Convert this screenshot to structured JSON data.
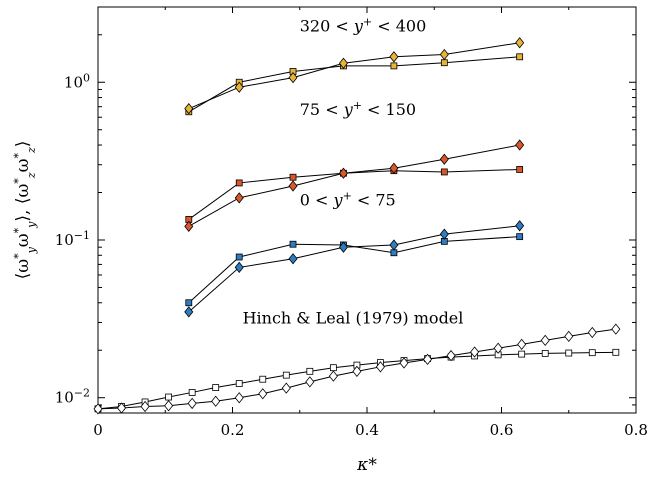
{
  "chart_data": {
    "type": "line",
    "xlabel": "κ*",
    "ylabel": "⟨ω*yω*y⟩, ⟨ω*zω*z⟩",
    "ylabel_parts": {
      "open1": "⟨ω",
      "sup1": "*",
      "sub1": "y",
      "mid1": "ω",
      "sup2": "*",
      "sub2": "y",
      "close1": "⟩, ⟨ω",
      "sup3": "*",
      "sub3": "z",
      "mid2": "ω",
      "sup4": "*",
      "sub4": "z",
      "close2": "⟩"
    },
    "xlim": [
      0,
      0.8
    ],
    "ylim": [
      0.008,
      3.0
    ],
    "yscale": "log",
    "x_ticks": [
      "0",
      "0.2",
      "0.4",
      "0.6",
      "0.8"
    ],
    "x_tick_values": [
      0,
      0.2,
      0.4,
      0.6,
      0.8
    ],
    "y_ticks": [
      {
        "base": "10",
        "exp": "−2",
        "value": 0.01
      },
      {
        "base": "10",
        "exp": "−1",
        "value": 0.1
      },
      {
        "base": "10",
        "exp": "0",
        "value": 1
      }
    ],
    "annotations": [
      {
        "text": "320 < y+ < 400",
        "prefix": "320 < ",
        "var": "y",
        "sup": "+",
        "suffix": " < 400",
        "x": 0.3,
        "y": 2.1
      },
      {
        "text": "75 < y+ < 150",
        "prefix": "75 < ",
        "var": "y",
        "sup": "+",
        "suffix": " < 150",
        "x": 0.3,
        "y": 0.62
      },
      {
        "text": "0 < y+ < 75",
        "prefix": "0 < ",
        "var": "y",
        "sup": "+",
        "suffix": " < 75",
        "x": 0.3,
        "y": 0.165
      },
      {
        "text": "Hinch & Leal (1979) model",
        "prefix": "Hinch & Leal (1979) model",
        "var": "",
        "sup": "",
        "suffix": "",
        "x": 0.215,
        "y": 0.0295
      }
    ],
    "series": [
      {
        "marker": "square",
        "fill": "#e8b339",
        "x": [
          0.135,
          0.21,
          0.29,
          0.365,
          0.44,
          0.515,
          0.627
        ],
        "y": [
          0.65,
          1.0,
          1.17,
          1.27,
          1.27,
          1.33,
          1.45
        ]
      },
      {
        "marker": "diamond",
        "fill": "#e8b339",
        "x": [
          0.135,
          0.21,
          0.29,
          0.365,
          0.44,
          0.515,
          0.627
        ],
        "y": [
          0.68,
          0.93,
          1.07,
          1.32,
          1.45,
          1.5,
          1.78
        ]
      },
      {
        "marker": "square",
        "fill": "#d9582b",
        "x": [
          0.135,
          0.21,
          0.29,
          0.365,
          0.44,
          0.515,
          0.627
        ],
        "y": [
          0.135,
          0.23,
          0.25,
          0.265,
          0.275,
          0.27,
          0.28
        ]
      },
      {
        "marker": "diamond",
        "fill": "#d9582b",
        "x": [
          0.135,
          0.21,
          0.29,
          0.365,
          0.44,
          0.515,
          0.627
        ],
        "y": [
          0.122,
          0.185,
          0.22,
          0.265,
          0.285,
          0.325,
          0.4
        ]
      },
      {
        "marker": "square",
        "fill": "#2f7cbf",
        "x": [
          0.135,
          0.21,
          0.29,
          0.365,
          0.44,
          0.515,
          0.627
        ],
        "y": [
          0.04,
          0.078,
          0.094,
          0.093,
          0.083,
          0.098,
          0.105
        ]
      },
      {
        "marker": "diamond",
        "fill": "#2f7cbf",
        "x": [
          0.135,
          0.21,
          0.29,
          0.365,
          0.44,
          0.515,
          0.627
        ],
        "y": [
          0.035,
          0.067,
          0.076,
          0.09,
          0.093,
          0.109,
          0.123
        ]
      },
      {
        "marker": "square",
        "fill": "#ffffff",
        "line": true,
        "x": [
          0,
          0.035,
          0.07,
          0.105,
          0.14,
          0.175,
          0.21,
          0.245,
          0.28,
          0.315,
          0.35,
          0.385,
          0.42,
          0.455,
          0.49,
          0.525,
          0.56,
          0.595,
          0.63,
          0.665,
          0.7,
          0.735,
          0.77
        ],
        "y": [
          0.0085,
          0.0088,
          0.0094,
          0.0101,
          0.0108,
          0.0116,
          0.0123,
          0.0131,
          0.0139,
          0.0147,
          0.0155,
          0.0161,
          0.0167,
          0.0172,
          0.0177,
          0.0181,
          0.0184,
          0.0187,
          0.0189,
          0.0191,
          0.0192,
          0.0193,
          0.0194
        ]
      },
      {
        "marker": "diamond",
        "fill": "#ffffff",
        "line": true,
        "x": [
          0,
          0.035,
          0.07,
          0.105,
          0.14,
          0.175,
          0.21,
          0.245,
          0.28,
          0.315,
          0.35,
          0.385,
          0.42,
          0.455,
          0.49,
          0.525,
          0.56,
          0.595,
          0.63,
          0.665,
          0.7,
          0.735,
          0.77
        ],
        "y": [
          0.0085,
          0.0086,
          0.0088,
          0.0089,
          0.0092,
          0.0095,
          0.01,
          0.0106,
          0.0115,
          0.0126,
          0.0137,
          0.0147,
          0.0157,
          0.0166,
          0.0175,
          0.0185,
          0.0195,
          0.0206,
          0.0218,
          0.0231,
          0.0245,
          0.0259,
          0.0272
        ]
      }
    ]
  }
}
